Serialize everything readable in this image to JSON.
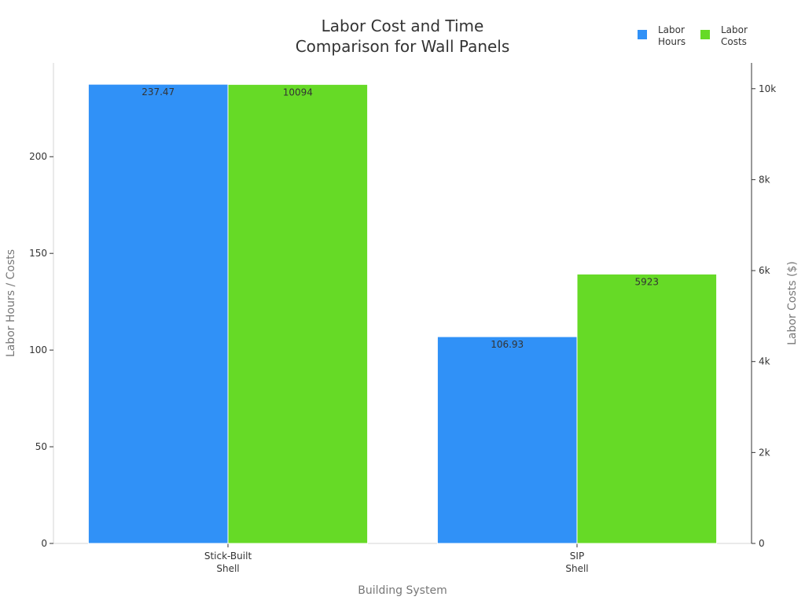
{
  "chart_data": {
    "type": "bar",
    "title_lines": [
      "Labor Cost and Time",
      "Comparison for Wall Panels"
    ],
    "xlabel": "Building System",
    "ylabel_left": "Labor Hours / Costs",
    "ylabel_right": "Labor Costs ($)",
    "categories": [
      [
        "Stick-Built",
        "Shell"
      ],
      [
        "SIP",
        "Shell"
      ]
    ],
    "series": [
      {
        "name": [
          "Labor",
          "Hours"
        ],
        "axis": "left",
        "color": "#3091f7",
        "values": [
          237.47,
          106.93
        ],
        "labels": [
          "237.47",
          "106.93"
        ]
      },
      {
        "name": [
          "Labor",
          "Costs"
        ],
        "axis": "right",
        "color": "#66da26",
        "values": [
          10094,
          5923
        ],
        "labels": [
          "10094",
          "5923"
        ]
      }
    ],
    "ylim_left": [
      0,
      248.5
    ],
    "ylim_right": [
      0,
      10567
    ],
    "yticks_left": [
      0,
      50,
      100,
      150,
      200
    ],
    "yticks_right": [
      0,
      2000,
      4000,
      6000,
      8000,
      10000
    ],
    "yticklabels_right": [
      "0",
      "2k",
      "4k",
      "6k",
      "8k",
      "10k"
    ],
    "grid": false,
    "legend_position": "top-right"
  }
}
